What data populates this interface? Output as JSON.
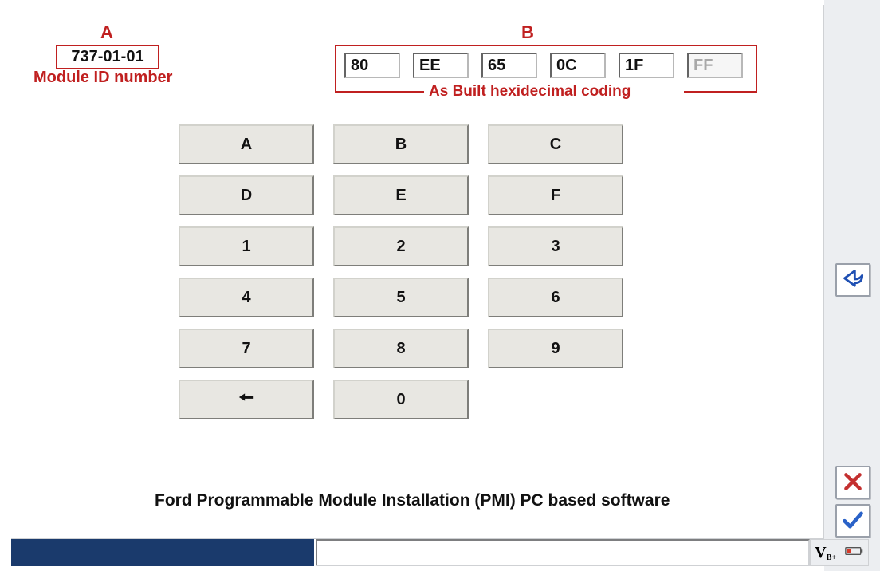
{
  "colors": {
    "annotation": "#c02020",
    "button_bg": "#e8e7e2",
    "panel_border": "#cfd1d4",
    "status_dark": "#1a3a6c",
    "right_strip": "#eceef1",
    "text": "#111111",
    "disabled_text": "#a8a8a8",
    "back_icon": "#1e4fb3",
    "cancel_icon": "#c43030",
    "ok_icon": "#2a62c8",
    "battery_red": "#d63a2a"
  },
  "annotation_a": {
    "letter": "A",
    "module_id": "737-01-01",
    "label": "Module ID number"
  },
  "annotation_b": {
    "letter": "B",
    "label": "As Built hexidecimal coding",
    "fields": [
      {
        "value": "80",
        "enabled": true
      },
      {
        "value": "EE",
        "enabled": true
      },
      {
        "value": "65",
        "enabled": true
      },
      {
        "value": "0C",
        "enabled": true
      },
      {
        "value": "1F",
        "enabled": true
      },
      {
        "value": "FF",
        "enabled": false
      }
    ]
  },
  "keypad": {
    "rows": [
      [
        "A",
        "B",
        "C"
      ],
      [
        "D",
        "E",
        "F"
      ],
      [
        "1",
        "2",
        "3"
      ],
      [
        "4",
        "5",
        "6"
      ],
      [
        "7",
        "8",
        "9"
      ],
      [
        "←",
        "0",
        ""
      ]
    ]
  },
  "caption": "Ford Programmable Module Installation (PMI) PC based software",
  "status": {
    "voltage_label": "V",
    "voltage_sub": "B+"
  }
}
